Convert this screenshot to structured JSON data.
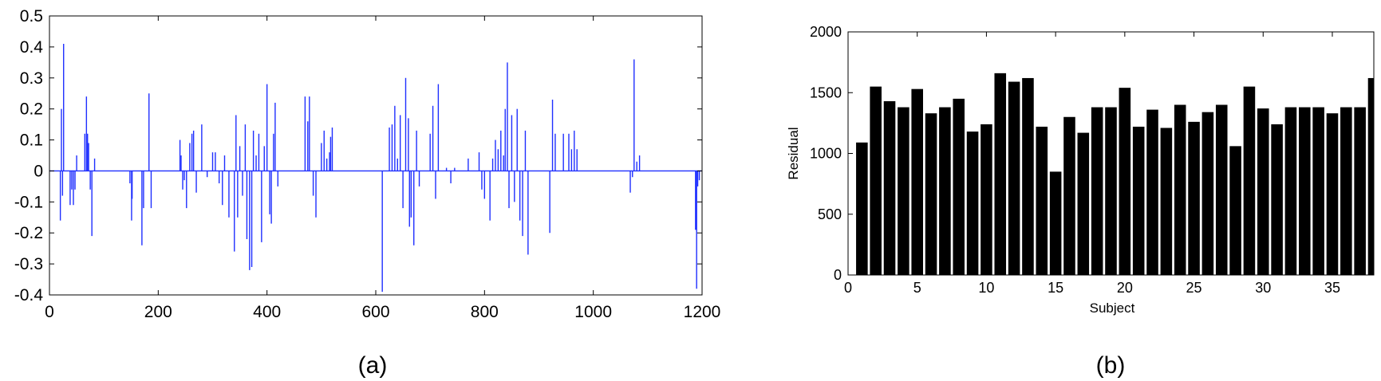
{
  "chart_data": [
    {
      "id": "a",
      "type": "stem",
      "caption": "(a)",
      "xlim": [
        0,
        1200
      ],
      "ylim": [
        -0.4,
        0.5
      ],
      "xticks": [
        0,
        200,
        400,
        600,
        800,
        1000,
        1200
      ],
      "yticks": [
        -0.4,
        -0.3,
        -0.2,
        -0.1,
        0,
        0.1,
        0.2,
        0.3,
        0.4,
        0.5
      ],
      "color": "#1f2fff",
      "xlabel": "",
      "ylabel": "",
      "grid": false,
      "x": [
        20,
        22,
        24,
        26,
        38,
        41,
        44,
        47,
        50,
        65,
        68,
        70,
        72,
        75,
        78,
        83,
        148,
        151,
        152,
        170,
        173,
        183,
        187,
        240,
        242,
        245,
        248,
        252,
        258,
        262,
        265,
        270,
        280,
        290,
        300,
        305,
        312,
        318,
        322,
        330,
        340,
        343,
        346,
        350,
        355,
        360,
        363,
        368,
        372,
        375,
        380,
        385,
        390,
        395,
        400,
        405,
        408,
        412,
        415,
        420,
        470,
        475,
        478,
        485,
        490,
        500,
        505,
        510,
        515,
        517,
        520,
        612,
        625,
        630,
        635,
        640,
        645,
        650,
        655,
        660,
        662,
        665,
        670,
        675,
        680,
        700,
        705,
        710,
        715,
        730,
        738,
        745,
        770,
        790,
        795,
        800,
        810,
        815,
        820,
        825,
        830,
        835,
        838,
        842,
        845,
        850,
        855,
        860,
        865,
        870,
        875,
        880,
        920,
        925,
        930,
        945,
        955,
        960,
        965,
        970,
        1068,
        1072,
        1075,
        1080,
        1085,
        1188,
        1190,
        1192,
        1195
      ],
      "y": [
        -0.16,
        0.2,
        -0.08,
        0.41,
        -0.11,
        -0.06,
        -0.11,
        -0.06,
        0.05,
        0.12,
        0.24,
        0.12,
        0.09,
        -0.06,
        -0.21,
        0.04,
        -0.04,
        -0.16,
        -0.09,
        -0.24,
        -0.12,
        0.25,
        -0.12,
        0.1,
        0.05,
        -0.06,
        -0.03,
        -0.12,
        0.09,
        0.12,
        0.13,
        -0.07,
        0.15,
        -0.02,
        0.06,
        0.06,
        -0.04,
        -0.11,
        0.05,
        -0.15,
        -0.26,
        0.18,
        -0.15,
        0.08,
        -0.08,
        0.15,
        -0.22,
        -0.32,
        -0.31,
        0.13,
        0.05,
        0.12,
        -0.23,
        0.08,
        0.28,
        -0.14,
        -0.17,
        0.12,
        0.22,
        -0.05,
        0.24,
        0.16,
        0.24,
        -0.08,
        -0.15,
        0.09,
        0.13,
        0.04,
        0.06,
        0.11,
        0.14,
        -0.39,
        0.14,
        0.15,
        0.21,
        0.04,
        0.18,
        -0.12,
        0.3,
        0.17,
        -0.18,
        -0.15,
        -0.24,
        0.13,
        -0.05,
        0.12,
        0.21,
        -0.09,
        0.28,
        0.01,
        -0.04,
        0.01,
        0.04,
        0.06,
        -0.06,
        -0.09,
        -0.16,
        0.04,
        0.1,
        0.07,
        0.13,
        0.05,
        0.2,
        0.35,
        -0.12,
        0.18,
        -0.1,
        0.2,
        -0.16,
        -0.21,
        0.13,
        -0.27,
        -0.2,
        0.23,
        0.12,
        0.12,
        0.12,
        0.07,
        0.13,
        0.07,
        -0.07,
        -0.02,
        0.36,
        0.03,
        0.05,
        -0.19,
        -0.38,
        -0.05,
        -0.03
      ]
    },
    {
      "id": "b",
      "type": "bar",
      "caption": "(b)",
      "xlabel": "Subject",
      "ylabel": "Residual",
      "xlim": [
        0,
        38
      ],
      "ylim": [
        0,
        2000
      ],
      "xticks": [
        0,
        5,
        10,
        15,
        20,
        25,
        30,
        35
      ],
      "yticks": [
        0,
        500,
        1000,
        1500,
        2000
      ],
      "color": "#000000",
      "grid": false,
      "categories": [
        1,
        2,
        3,
        4,
        5,
        6,
        7,
        8,
        9,
        10,
        11,
        12,
        13,
        14,
        15,
        16,
        17,
        18,
        19,
        20,
        21,
        22,
        23,
        24,
        25,
        26,
        27,
        28,
        29,
        30,
        31,
        32,
        33,
        34,
        35,
        36,
        37,
        38
      ],
      "values": [
        1090,
        1550,
        1430,
        1380,
        1530,
        1330,
        1380,
        1450,
        1180,
        1240,
        1660,
        1590,
        1620,
        1220,
        850,
        1300,
        1170,
        1380,
        1380,
        1540,
        1220,
        1360,
        1210,
        1400,
        1260,
        1340,
        1400,
        1060,
        1550,
        1370,
        1240,
        1380,
        1380,
        1380,
        1330,
        1380,
        1380,
        1620
      ]
    }
  ]
}
